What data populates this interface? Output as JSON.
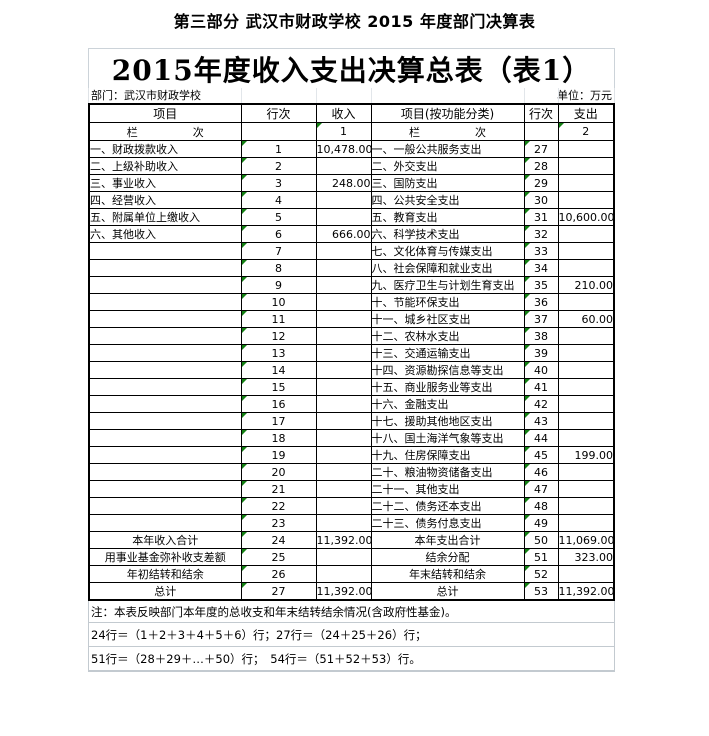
{
  "page_heading": "第三部分 武汉市财政学校 2015 年度部门决算表",
  "table": {
    "title": "2015年度收入支出决算总表（表1）",
    "department_label": "部门：武汉市财政学校",
    "unit_label": "单位：万元",
    "columns": [
      "项目",
      "行次",
      "收入",
      "项目(按功能分类)",
      "行次",
      "支出"
    ],
    "column_index_row": {
      "c1": "栏　　　　　次",
      "c2": "",
      "c3": "1",
      "c4": "栏　　　　　次",
      "c5": "",
      "c6": "2"
    },
    "rows": [
      {
        "c1": "一、财政拨款收入",
        "c2": "1",
        "c3": "10,478.00",
        "c4": "一、一般公共服务支出",
        "c5": "27",
        "c6": "",
        "sum": false
      },
      {
        "c1": "二、上级补助收入",
        "c2": "2",
        "c3": "",
        "c4": "二、外交支出",
        "c5": "28",
        "c6": "",
        "sum": false
      },
      {
        "c1": "三、事业收入",
        "c2": "3",
        "c3": "248.00",
        "c4": "三、国防支出",
        "c5": "29",
        "c6": "",
        "sum": false
      },
      {
        "c1": "四、经营收入",
        "c2": "4",
        "c3": "",
        "c4": "四、公共安全支出",
        "c5": "30",
        "c6": "",
        "sum": false
      },
      {
        "c1": "五、附属单位上缴收入",
        "c2": "5",
        "c3": "",
        "c4": "五、教育支出",
        "c5": "31",
        "c6": "10,600.00",
        "sum": false
      },
      {
        "c1": "六、其他收入",
        "c2": "6",
        "c3": "666.00",
        "c4": "六、科学技术支出",
        "c5": "32",
        "c6": "",
        "sum": false
      },
      {
        "c1": "",
        "c2": "7",
        "c3": "",
        "c4": "七、文化体育与传媒支出",
        "c5": "33",
        "c6": "",
        "sum": false
      },
      {
        "c1": "",
        "c2": "8",
        "c3": "",
        "c4": "八、社会保障和就业支出",
        "c5": "34",
        "c6": "",
        "sum": false
      },
      {
        "c1": "",
        "c2": "9",
        "c3": "",
        "c4": "九、医疗卫生与计划生育支出",
        "c5": "35",
        "c6": "210.00",
        "sum": false
      },
      {
        "c1": "",
        "c2": "10",
        "c3": "",
        "c4": "十、节能环保支出",
        "c5": "36",
        "c6": "",
        "sum": false
      },
      {
        "c1": "",
        "c2": "11",
        "c3": "",
        "c4": "十一、城乡社区支出",
        "c5": "37",
        "c6": "60.00",
        "sum": false
      },
      {
        "c1": "",
        "c2": "12",
        "c3": "",
        "c4": "十二、农林水支出",
        "c5": "38",
        "c6": "",
        "sum": false
      },
      {
        "c1": "",
        "c2": "13",
        "c3": "",
        "c4": "十三、交通运输支出",
        "c5": "39",
        "c6": "",
        "sum": false
      },
      {
        "c1": "",
        "c2": "14",
        "c3": "",
        "c4": "十四、资源勘探信息等支出",
        "c5": "40",
        "c6": "",
        "sum": false
      },
      {
        "c1": "",
        "c2": "15",
        "c3": "",
        "c4": "十五、商业服务业等支出",
        "c5": "41",
        "c6": "",
        "sum": false
      },
      {
        "c1": "",
        "c2": "16",
        "c3": "",
        "c4": "十六、金融支出",
        "c5": "42",
        "c6": "",
        "sum": false
      },
      {
        "c1": "",
        "c2": "17",
        "c3": "",
        "c4": "十七、援助其他地区支出",
        "c5": "43",
        "c6": "",
        "sum": false
      },
      {
        "c1": "",
        "c2": "18",
        "c3": "",
        "c4": "十八、国土海洋气象等支出",
        "c5": "44",
        "c6": "",
        "sum": false
      },
      {
        "c1": "",
        "c2": "19",
        "c3": "",
        "c4": "十九、住房保障支出",
        "c5": "45",
        "c6": "199.00",
        "sum": false
      },
      {
        "c1": "",
        "c2": "20",
        "c3": "",
        "c4": "二十、粮油物资储备支出",
        "c5": "46",
        "c6": "",
        "sum": false
      },
      {
        "c1": "",
        "c2": "21",
        "c3": "",
        "c4": "二十一、其他支出",
        "c5": "47",
        "c6": "",
        "sum": false
      },
      {
        "c1": "",
        "c2": "22",
        "c3": "",
        "c4": "二十二、债务还本支出",
        "c5": "48",
        "c6": "",
        "sum": false
      },
      {
        "c1": "",
        "c2": "23",
        "c3": "",
        "c4": "二十三、债务付息支出",
        "c5": "49",
        "c6": "",
        "sum": false
      },
      {
        "c1": "本年收入合计",
        "c2": "24",
        "c3": "11,392.00",
        "c4": "本年支出合计",
        "c5": "50",
        "c6": "11,069.00",
        "sum": true
      },
      {
        "c1": "用事业基金弥补收支差额",
        "c2": "25",
        "c3": "",
        "c4": "结余分配",
        "c5": "51",
        "c6": "323.00",
        "sum": true
      },
      {
        "c1": "年初结转和结余",
        "c2": "26",
        "c3": "",
        "c4": "年末结转和结余",
        "c5": "52",
        "c6": "",
        "sum": true
      },
      {
        "c1": "总计",
        "c2": "27",
        "c3": "11,392.00",
        "c4": "总计",
        "c5": "53",
        "c6": "11,392.00",
        "sum": true
      }
    ],
    "notes": [
      "注：本表反映部门本年度的总收支和年末结转结余情况(含政府性基金)。",
      "24行＝（1＋2＋3＋4＋5＋6）行；27行＝（24＋25＋26）行；",
      "51行＝（28＋29＋…＋50）行；　54行＝（51＋52＋53）行。"
    ],
    "colors": {
      "triangle_green": "#138013"
    }
  }
}
